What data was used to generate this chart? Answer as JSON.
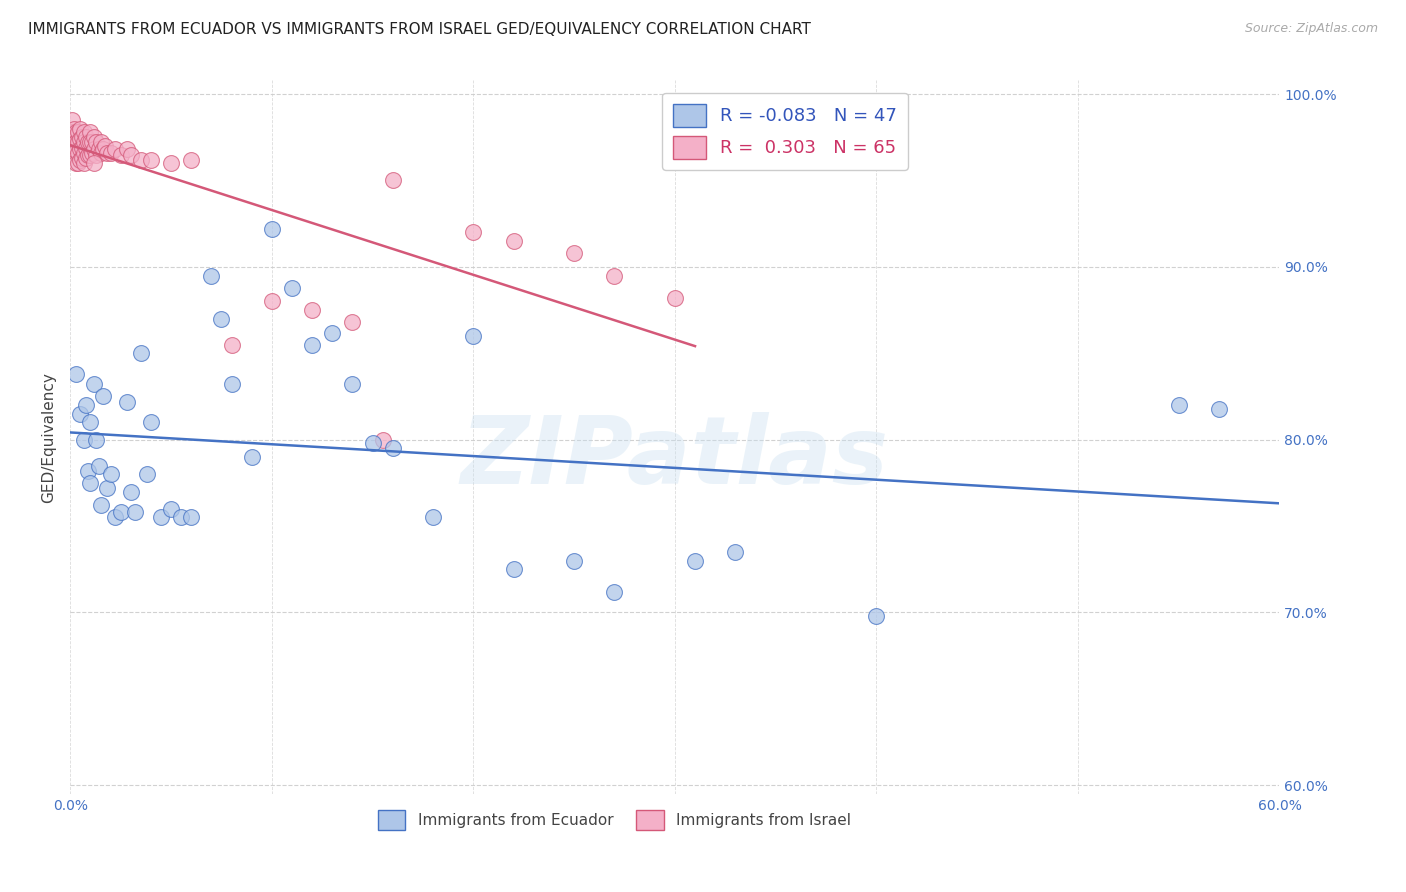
{
  "title": "IMMIGRANTS FROM ECUADOR VS IMMIGRANTS FROM ISRAEL GED/EQUIVALENCY CORRELATION CHART",
  "source": "Source: ZipAtlas.com",
  "ylabel": "GED/Equivalency",
  "xlim": [
    0.0,
    0.6
  ],
  "ylim": [
    0.595,
    1.008
  ],
  "xticks": [
    0.0,
    0.1,
    0.2,
    0.3,
    0.4,
    0.5,
    0.6
  ],
  "xticklabels": [
    "0.0%",
    "",
    "",
    "",
    "",
    "",
    "60.0%"
  ],
  "yticks": [
    0.6,
    0.7,
    0.8,
    0.9,
    1.0
  ],
  "yticklabels": [
    "60.0%",
    "70.0%",
    "80.0%",
    "90.0%",
    "100.0%"
  ],
  "legend_r_ecuador": "-0.083",
  "legend_n_ecuador": "47",
  "legend_r_israel": "0.303",
  "legend_n_israel": "65",
  "ecuador_color": "#aec6e8",
  "israel_color": "#f4b0c8",
  "ecuador_edge_color": "#4472c4",
  "israel_edge_color": "#d45878",
  "ecuador_line_color": "#4472c4",
  "israel_line_color": "#d45878",
  "watermark": "ZIPatlas",
  "ecuador_x": [
    0.003,
    0.005,
    0.007,
    0.008,
    0.009,
    0.01,
    0.01,
    0.012,
    0.013,
    0.014,
    0.015,
    0.016,
    0.018,
    0.02,
    0.022,
    0.025,
    0.028,
    0.03,
    0.032,
    0.035,
    0.038,
    0.04,
    0.045,
    0.05,
    0.055,
    0.06,
    0.07,
    0.075,
    0.08,
    0.09,
    0.1,
    0.11,
    0.12,
    0.13,
    0.14,
    0.15,
    0.16,
    0.18,
    0.2,
    0.22,
    0.25,
    0.27,
    0.31,
    0.33,
    0.4,
    0.55,
    0.57
  ],
  "ecuador_y": [
    0.838,
    0.815,
    0.8,
    0.82,
    0.782,
    0.81,
    0.775,
    0.832,
    0.8,
    0.785,
    0.762,
    0.825,
    0.772,
    0.78,
    0.755,
    0.758,
    0.822,
    0.77,
    0.758,
    0.85,
    0.78,
    0.81,
    0.755,
    0.76,
    0.755,
    0.755,
    0.895,
    0.87,
    0.832,
    0.79,
    0.922,
    0.888,
    0.855,
    0.862,
    0.832,
    0.798,
    0.795,
    0.755,
    0.86,
    0.725,
    0.73,
    0.712,
    0.73,
    0.735,
    0.698,
    0.82,
    0.818
  ],
  "israel_x": [
    0.001,
    0.001,
    0.002,
    0.002,
    0.002,
    0.003,
    0.003,
    0.003,
    0.003,
    0.004,
    0.004,
    0.004,
    0.004,
    0.005,
    0.005,
    0.005,
    0.005,
    0.006,
    0.006,
    0.006,
    0.007,
    0.007,
    0.007,
    0.007,
    0.008,
    0.008,
    0.008,
    0.009,
    0.009,
    0.01,
    0.01,
    0.01,
    0.011,
    0.011,
    0.012,
    0.012,
    0.013,
    0.013,
    0.014,
    0.015,
    0.015,
    0.016,
    0.017,
    0.018,
    0.02,
    0.022,
    0.025,
    0.028,
    0.03,
    0.035,
    0.04,
    0.05,
    0.06,
    0.08,
    0.1,
    0.12,
    0.14,
    0.16,
    0.2,
    0.22,
    0.25,
    0.27,
    0.3,
    0.012,
    0.155
  ],
  "israel_y": [
    0.985,
    0.978,
    0.98,
    0.975,
    0.97,
    0.978,
    0.972,
    0.967,
    0.96,
    0.978,
    0.972,
    0.966,
    0.96,
    0.98,
    0.974,
    0.968,
    0.962,
    0.975,
    0.969,
    0.963,
    0.978,
    0.972,
    0.966,
    0.96,
    0.975,
    0.969,
    0.963,
    0.972,
    0.965,
    0.978,
    0.972,
    0.965,
    0.972,
    0.966,
    0.975,
    0.968,
    0.972,
    0.965,
    0.968,
    0.972,
    0.966,
    0.968,
    0.97,
    0.966,
    0.966,
    0.968,
    0.965,
    0.968,
    0.965,
    0.962,
    0.962,
    0.96,
    0.962,
    0.855,
    0.88,
    0.875,
    0.868,
    0.95,
    0.92,
    0.915,
    0.908,
    0.895,
    0.882,
    0.96,
    0.8
  ]
}
